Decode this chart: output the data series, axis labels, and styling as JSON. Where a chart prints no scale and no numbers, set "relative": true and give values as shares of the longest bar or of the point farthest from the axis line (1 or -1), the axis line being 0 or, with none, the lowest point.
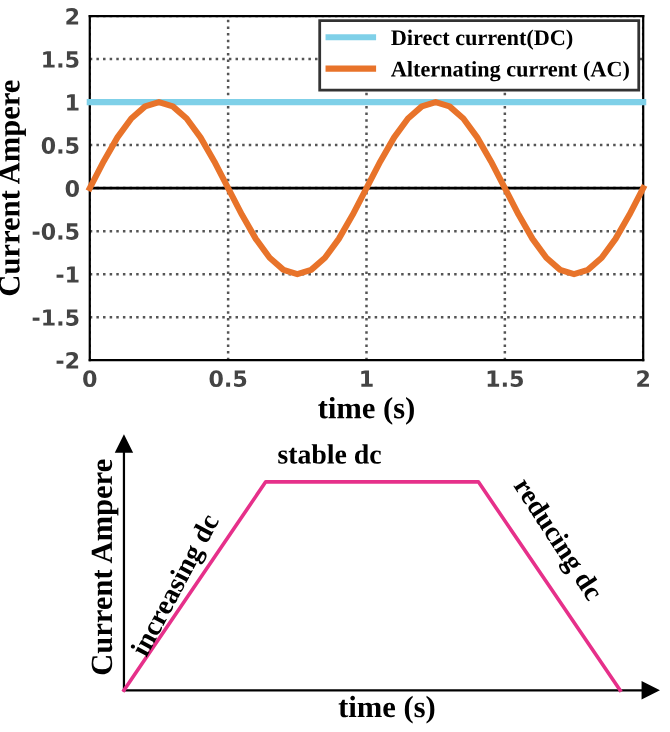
{
  "chart_data": [
    {
      "type": "line",
      "xlabel": "time (s)",
      "ylabel": "Current Ampere",
      "x": [
        0,
        0.05,
        0.1,
        0.15,
        0.2,
        0.25,
        0.3,
        0.35,
        0.4,
        0.45,
        0.5,
        0.55,
        0.6,
        0.65,
        0.7,
        0.75,
        0.8,
        0.85,
        0.9,
        0.95,
        1,
        1.05,
        1.1,
        1.15,
        1.2,
        1.25,
        1.3,
        1.35,
        1.4,
        1.45,
        1.5,
        1.55,
        1.6,
        1.65,
        1.7,
        1.75,
        1.8,
        1.85,
        1.9,
        1.95,
        2
      ],
      "series": [
        {
          "name": "Direct current(DC)",
          "color": "#7fd0e8",
          "x": [
            0,
            2
          ],
          "values": [
            1,
            1
          ]
        },
        {
          "name": "Alternating current (AC)",
          "color": "#e8732a",
          "values": [
            0,
            0.31,
            0.59,
            0.81,
            0.95,
            1,
            0.95,
            0.81,
            0.59,
            0.31,
            0,
            -0.31,
            -0.59,
            -0.81,
            -0.95,
            -1,
            -0.95,
            -0.81,
            -0.59,
            -0.31,
            0,
            0.31,
            0.59,
            0.81,
            0.95,
            1,
            0.95,
            0.81,
            0.59,
            0.31,
            0,
            -0.31,
            -0.59,
            -0.81,
            -0.95,
            -1,
            -0.95,
            -0.81,
            -0.59,
            -0.31,
            0
          ]
        }
      ],
      "xlim": [
        0,
        2
      ],
      "xticks": [
        0,
        0.5,
        1,
        1.5,
        2
      ],
      "ylim": [
        -2,
        2
      ],
      "yticks": [
        -2,
        -1.5,
        -1,
        -0.5,
        0,
        0.5,
        1,
        1.5,
        2
      ],
      "ref_lines": [
        {
          "axis": "y",
          "value": 0,
          "color": "#000000"
        }
      ],
      "grid": true,
      "legend": "top right",
      "marker": "none",
      "line_style": "solid"
    },
    {
      "type": "line",
      "relative": true,
      "xlabel": "time (s)",
      "ylabel": "Current Ampere",
      "categories": [
        null,
        null,
        null,
        null,
        null,
        null,
        null,
        null
      ],
      "series": [
        {
          "color": "#e6308a",
          "values": [
            0,
            0.5,
            1,
            1,
            1,
            1,
            0.5,
            0
          ]
        }
      ],
      "annotations": [
        "increasing dc",
        "stable dc",
        "reducing dc"
      ],
      "tick_labels": false,
      "grid": false,
      "legend": false,
      "marker": "none",
      "line_style": "solid"
    }
  ]
}
